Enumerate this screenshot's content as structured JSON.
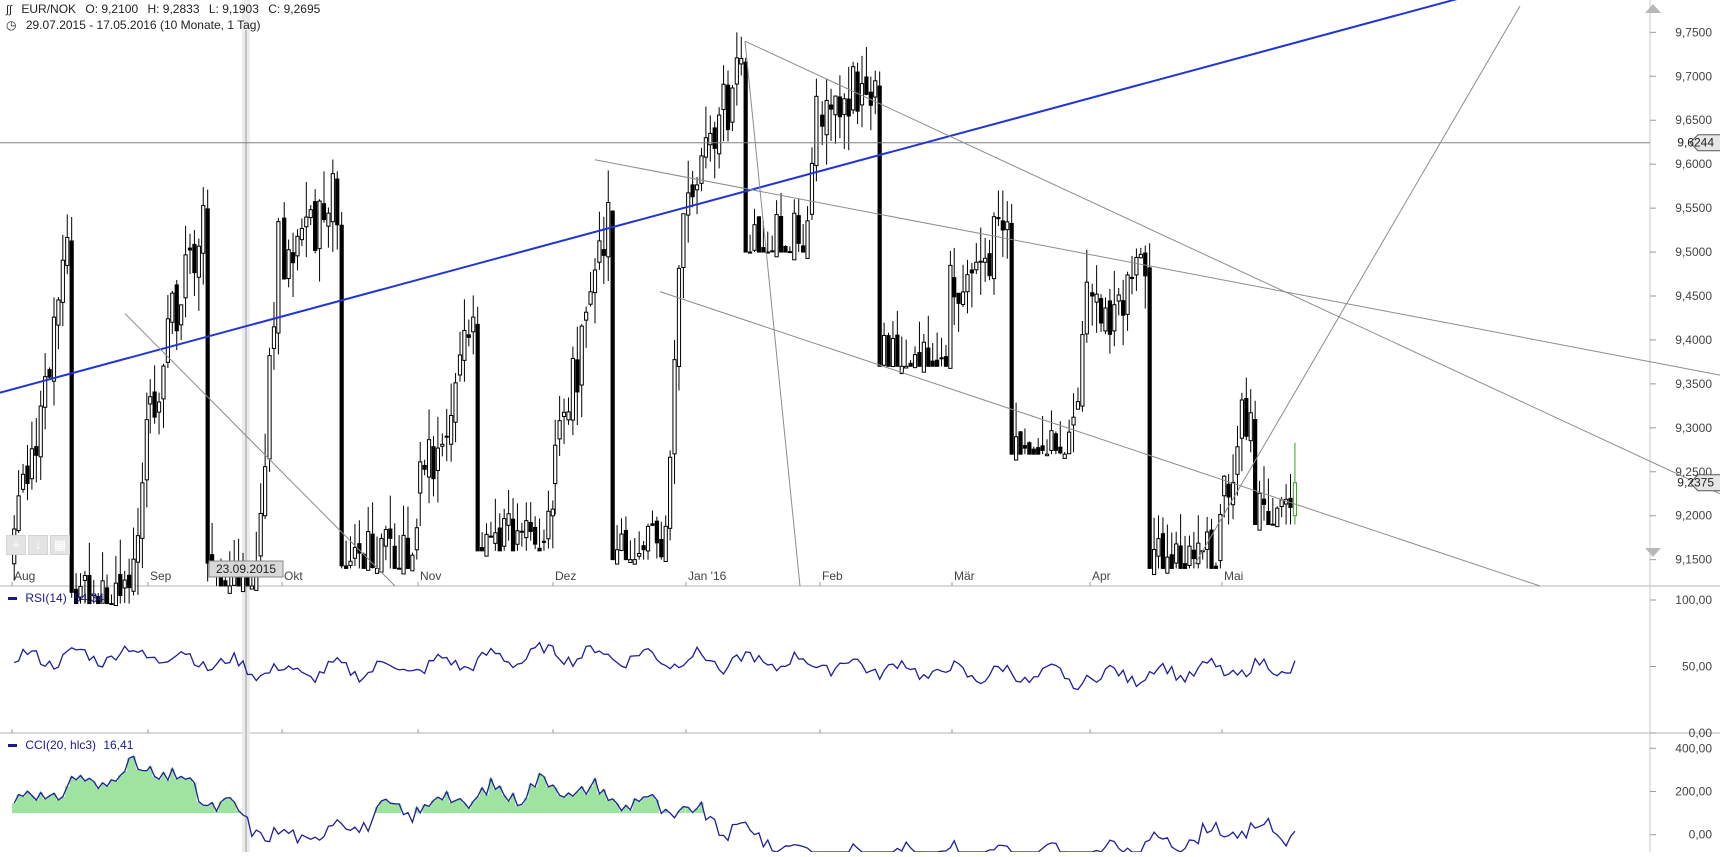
{
  "header": {
    "symbol": "EUR/NOK",
    "open": "O: 9,2100",
    "high": "H: 9,2833",
    "low": "L: 9,1903",
    "close": "C: 9,2695",
    "range": "29.07.2015 - 17.05.2016 (10 Monate, 1 Tag)"
  },
  "crosshair_date": "23.09.2015",
  "price_tags": {
    "horizontal_level": "9,6244",
    "last": "9,2375"
  },
  "rsi": {
    "label": "RSI(14)",
    "value": "54,34"
  },
  "cci": {
    "label": "CCI(20, hlc3)",
    "value": "16,41"
  },
  "colors": {
    "candle": "#000000",
    "trend_blue": "#1f35d6",
    "trend_gray": "#8c8c8c",
    "indicator_line": "#1f1f9c",
    "overbought_fill": "#9ee3a0",
    "oversold_fill": "#f0a8a8",
    "last_candle": "#3aa021"
  },
  "chart_data": [
    {
      "type": "candlestick",
      "title": "EUR/NOK",
      "x_tick_labels": [
        "Aug",
        "Sep",
        "Okt",
        "Nov",
        "Dez",
        "Jan '16",
        "Feb",
        "Mär",
        "Apr",
        "Mai"
      ],
      "y_tick_labels": [
        "9,1500",
        "9,2000",
        "9,2500",
        "9,3000",
        "9,3500",
        "9,4000",
        "9,4500",
        "9,5000",
        "9,5500",
        "9,6000",
        "9,6500",
        "9,7000",
        "9,7500"
      ],
      "ylim": [
        9.12,
        9.78
      ],
      "horizontal_level": 9.6244,
      "last_close": 9.2375,
      "monthly_path": [
        {
          "month": "Aug",
          "open": 9.15,
          "high": 9.58,
          "low": 9.1,
          "close": 9.33
        },
        {
          "month": "Sep",
          "open": 9.33,
          "high": 9.62,
          "low": 9.12,
          "close": 9.53
        },
        {
          "month": "Okt",
          "open": 9.53,
          "high": 9.62,
          "low": 9.14,
          "close": 9.22
        },
        {
          "month": "Nov",
          "open": 9.22,
          "high": 9.47,
          "low": 9.16,
          "close": 9.24
        },
        {
          "month": "Dez",
          "open": 9.24,
          "high": 9.61,
          "low": 9.15,
          "close": 9.55
        },
        {
          "month": "Jan '16",
          "open": 9.55,
          "high": 9.75,
          "low": 9.5,
          "close": 9.66
        },
        {
          "month": "Feb",
          "open": 9.66,
          "high": 9.75,
          "low": 9.37,
          "close": 9.47
        },
        {
          "month": "Mär",
          "open": 9.47,
          "high": 9.57,
          "low": 9.27,
          "close": 9.45
        },
        {
          "month": "Apr",
          "open": 9.45,
          "high": 9.51,
          "low": 9.14,
          "close": 9.22
        },
        {
          "month": "Mai",
          "open": 9.22,
          "high": 9.38,
          "low": 9.19,
          "close": 9.2375
        }
      ]
    },
    {
      "type": "line",
      "title": "RSI(14)",
      "y_tick_labels": [
        "0,00",
        "50,00",
        "100,00"
      ],
      "ylim": [
        0,
        100
      ],
      "overbought": 70,
      "current": 54.34,
      "monthly_path": [
        {
          "month": "Aug",
          "value": 55
        },
        {
          "month": "Sep",
          "value": 60
        },
        {
          "month": "Okt",
          "value": 45
        },
        {
          "month": "Nov",
          "value": 50
        },
        {
          "month": "Dez",
          "value": 60
        },
        {
          "month": "Jan '16",
          "value": 55
        },
        {
          "month": "Feb",
          "value": 52
        },
        {
          "month": "Mär",
          "value": 45
        },
        {
          "month": "Apr",
          "value": 42
        },
        {
          "month": "Mai",
          "value": 48
        }
      ]
    },
    {
      "type": "line",
      "title": "CCI(20, hlc3)",
      "y_tick_labels": [
        "0,00",
        "200,00",
        "400,00"
      ],
      "ylim": [
        -80,
        420
      ],
      "overbought": 100,
      "oversold": -100,
      "current": 16.41,
      "monthly_path": [
        {
          "month": "Aug",
          "value": 150
        },
        {
          "month": "Sep",
          "value": 320
        },
        {
          "month": "Okt",
          "value": -30
        },
        {
          "month": "Nov",
          "value": 140
        },
        {
          "month": "Dez",
          "value": 230
        },
        {
          "month": "Jan '16",
          "value": 100
        },
        {
          "month": "Feb",
          "value": -110
        },
        {
          "month": "Mär",
          "value": -80
        },
        {
          "month": "Apr",
          "value": -100
        },
        {
          "month": "Mai",
          "value": 16.41
        }
      ]
    }
  ]
}
